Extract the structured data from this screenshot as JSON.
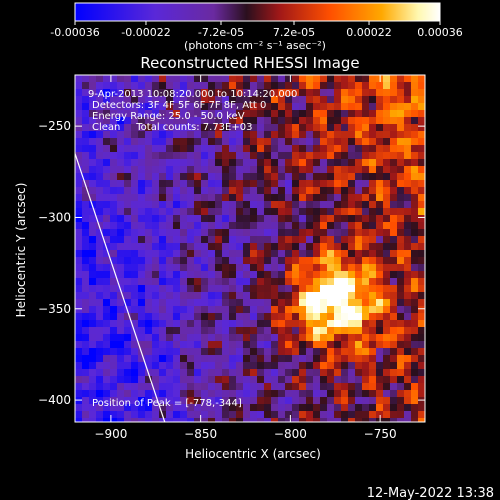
{
  "chart_data": {
    "type": "heatmap",
    "title": "Reconstructed RHESSI Image",
    "colorbar": {
      "tick_labels": [
        "-0.00036",
        "-0.00022",
        "-7.2e-05",
        "7.2e-05",
        "0.00022",
        "0.00036"
      ],
      "tick_values": [
        -0.00036,
        -0.00022,
        -7.2e-05,
        7.2e-05,
        0.00022,
        0.00036
      ],
      "range": [
        -0.00036,
        0.00036
      ],
      "unit_label": "(photons cm⁻² s⁻¹ asec⁻²)",
      "colors": [
        "#0000ff",
        "#5a28d8",
        "#6a2aa0",
        "#2a0f1e",
        "#a01818",
        "#ff5000",
        "#ffa800",
        "#fff8b0",
        "#ffffff"
      ]
    },
    "xlabel": "Heliocentric X (arcsec)",
    "ylabel": "Heliocentric Y (arcsec)",
    "xlim": [
      -920,
      -725
    ],
    "ylim": [
      -412,
      -222
    ],
    "x_ticks": [
      -900,
      -850,
      -800,
      -750
    ],
    "x_tick_labels": [
      "−900",
      "−850",
      "−800",
      "−750"
    ],
    "y_ticks": [
      -250,
      -300,
      -350,
      -400
    ],
    "y_tick_labels": [
      "−250",
      "−300",
      "−350",
      "−400"
    ],
    "annotations": [
      "9-Apr-2013 10:08:20.000 to 10:14:20.000",
      "Detectors: 3F 4F 5F 6F 7F 8F, Att 0",
      "Energy Range: 25.0 - 50.0 keV",
      "Clean     Total counts: 7.73E+03"
    ],
    "peak_label": "Position of Peak = [-778,-344]",
    "peak": [
      -778,
      -344
    ],
    "limb_line": [
      [
        -920,
        -265
      ],
      [
        -870,
        -412
      ]
    ],
    "colors": {
      "background": "#000000",
      "axes": "#ffffff",
      "limb": "#ffffff"
    }
  },
  "footer": {
    "timestamp": "12-May-2022 13:38"
  }
}
